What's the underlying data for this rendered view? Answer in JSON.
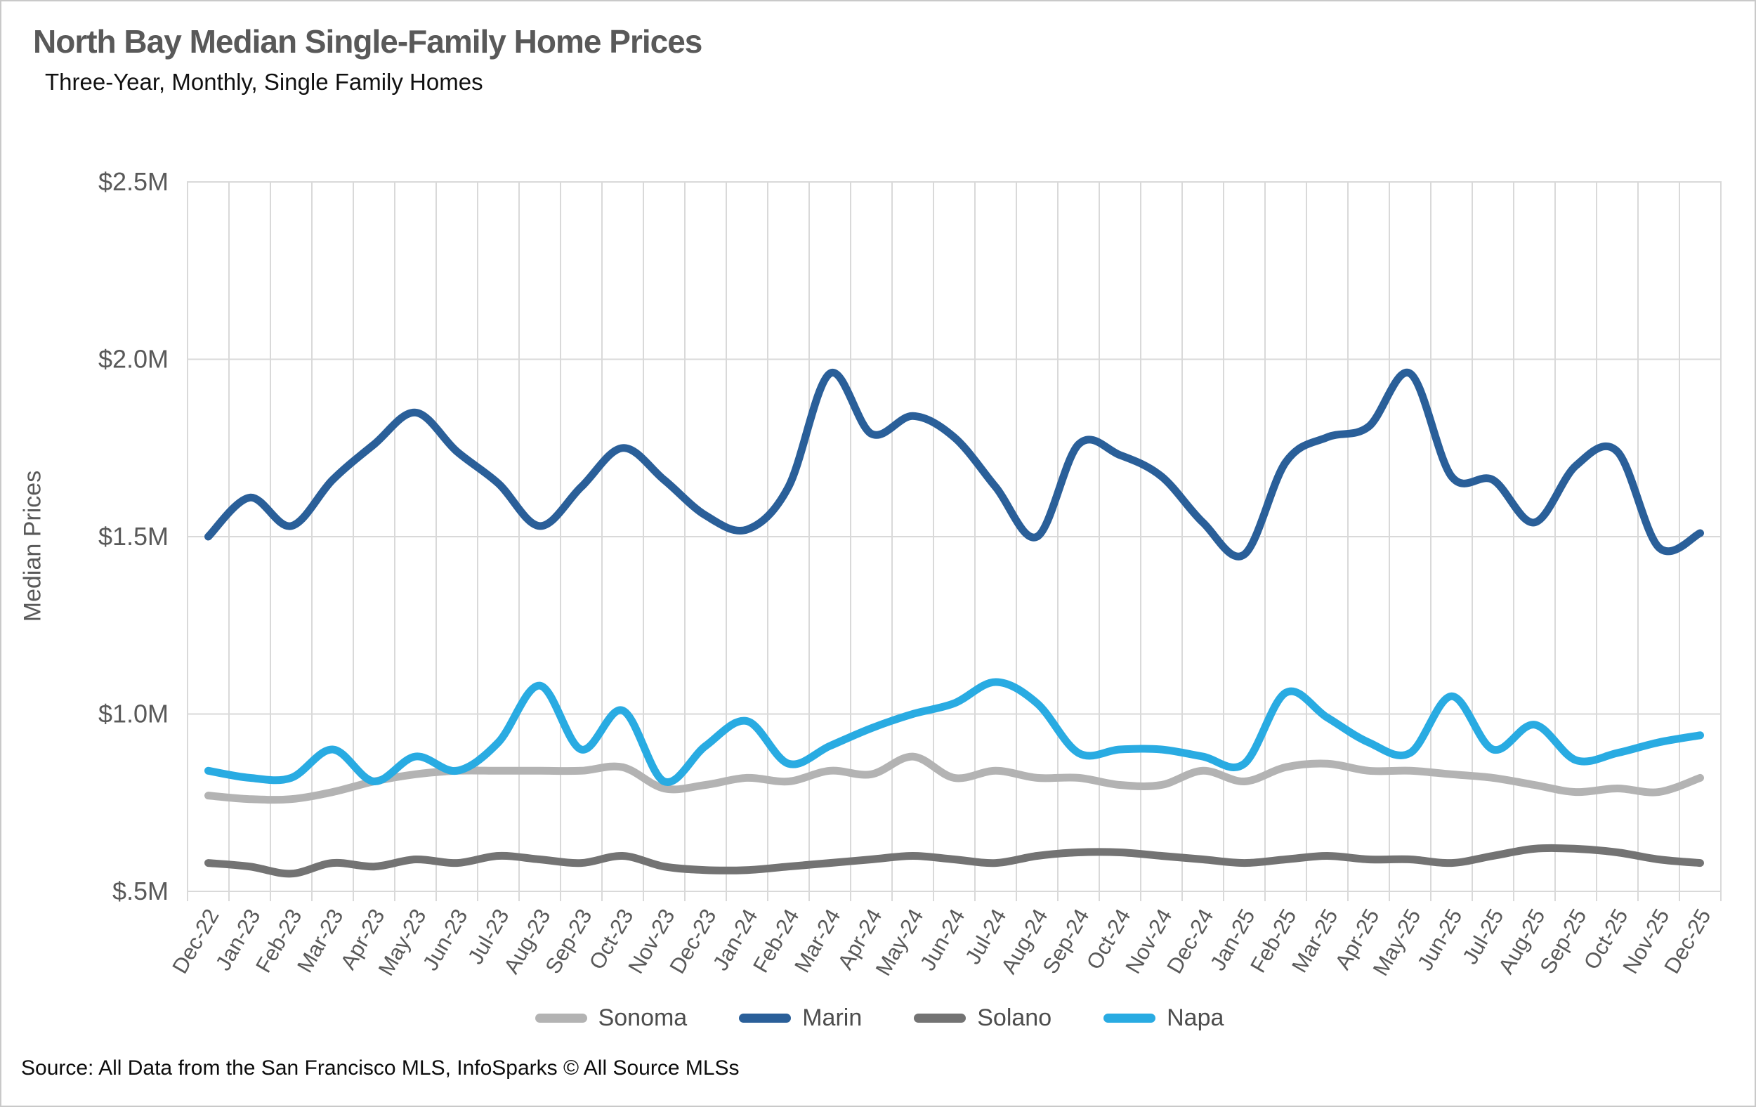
{
  "header": {
    "title": "North Bay Median Single-Family Home Prices",
    "subtitle": "Three-Year, Monthly, Single Family Homes"
  },
  "source_note": "Source: All Data from the San Francisco MLS, InfoSparks © All Source MLSs",
  "chart_data": {
    "type": "line",
    "title": "North Bay Median Single-Family Home Prices",
    "subtitle": "Three-Year, Monthly, Single Family Homes",
    "xlabel": "",
    "ylabel": "Median Prices",
    "units": "millions of USD",
    "grid": true,
    "legend_position": "bottom",
    "smoothed_lines": true,
    "ylim": [
      0.5,
      2.5
    ],
    "ytick_values": [
      0.5,
      1.0,
      1.5,
      2.0,
      2.5
    ],
    "ytick_labels": [
      "$.5M",
      "$1.0M",
      "$1.5M",
      "$2.0M",
      "$2.5M"
    ],
    "grid_color": "#d9d9d9",
    "axis_text_color": "#595959",
    "categories": [
      "Dec-22",
      "Jan-23",
      "Feb-23",
      "Mar-23",
      "Apr-23",
      "May-23",
      "Jun-23",
      "Jul-23",
      "Aug-23",
      "Sep-23",
      "Oct-23",
      "Nov-23",
      "Dec-23",
      "Jan-24",
      "Feb-24",
      "Mar-24",
      "Apr-24",
      "May-24",
      "Jun-24",
      "Jul-24",
      "Aug-24",
      "Sep-24",
      "Oct-24",
      "Nov-24",
      "Dec-24",
      "Jan-25",
      "Feb-25",
      "Mar-25",
      "Apr-25",
      "May-25",
      "Jun-25",
      "Jul-25",
      "Aug-25",
      "Sep-25",
      "Oct-25",
      "Nov-25",
      "Dec-25"
    ],
    "series": [
      {
        "name": "Sonoma",
        "color": "#b3b3b3",
        "values": [
          0.77,
          0.76,
          0.76,
          0.78,
          0.81,
          0.83,
          0.84,
          0.84,
          0.84,
          0.84,
          0.85,
          0.79,
          0.8,
          0.82,
          0.81,
          0.84,
          0.83,
          0.88,
          0.82,
          0.84,
          0.82,
          0.82,
          0.8,
          0.8,
          0.84,
          0.81,
          0.85,
          0.86,
          0.84,
          0.84,
          0.83,
          0.82,
          0.8,
          0.78,
          0.79,
          0.78,
          0.82
        ]
      },
      {
        "name": "Marin",
        "color": "#2a5f99",
        "values": [
          1.5,
          1.61,
          1.53,
          1.66,
          1.76,
          1.85,
          1.74,
          1.65,
          1.53,
          1.64,
          1.75,
          1.66,
          1.56,
          1.52,
          1.64,
          1.96,
          1.79,
          1.84,
          1.78,
          1.64,
          1.5,
          1.76,
          1.73,
          1.67,
          1.54,
          1.45,
          1.71,
          1.78,
          1.81,
          1.96,
          1.67,
          1.66,
          1.54,
          1.7,
          1.74,
          1.47,
          1.51
        ]
      },
      {
        "name": "Solano",
        "color": "#737373",
        "values": [
          0.58,
          0.57,
          0.55,
          0.58,
          0.57,
          0.59,
          0.58,
          0.6,
          0.59,
          0.58,
          0.6,
          0.57,
          0.56,
          0.56,
          0.57,
          0.58,
          0.59,
          0.6,
          0.59,
          0.58,
          0.6,
          0.61,
          0.61,
          0.6,
          0.59,
          0.58,
          0.59,
          0.6,
          0.59,
          0.59,
          0.58,
          0.6,
          0.62,
          0.62,
          0.61,
          0.59,
          0.58
        ]
      },
      {
        "name": "Napa",
        "color": "#29abe2",
        "values": [
          0.84,
          0.82,
          0.82,
          0.9,
          0.81,
          0.88,
          0.84,
          0.92,
          1.08,
          0.9,
          1.01,
          0.81,
          0.91,
          0.98,
          0.86,
          0.91,
          0.96,
          1.0,
          1.03,
          1.09,
          1.03,
          0.89,
          0.9,
          0.9,
          0.88,
          0.86,
          1.06,
          0.99,
          0.92,
          0.89,
          1.05,
          0.9,
          0.97,
          0.87,
          0.89,
          0.92,
          0.94
        ]
      }
    ],
    "draw_order": [
      0,
      1,
      2,
      3
    ],
    "legend_order": [
      0,
      1,
      2,
      3
    ]
  }
}
